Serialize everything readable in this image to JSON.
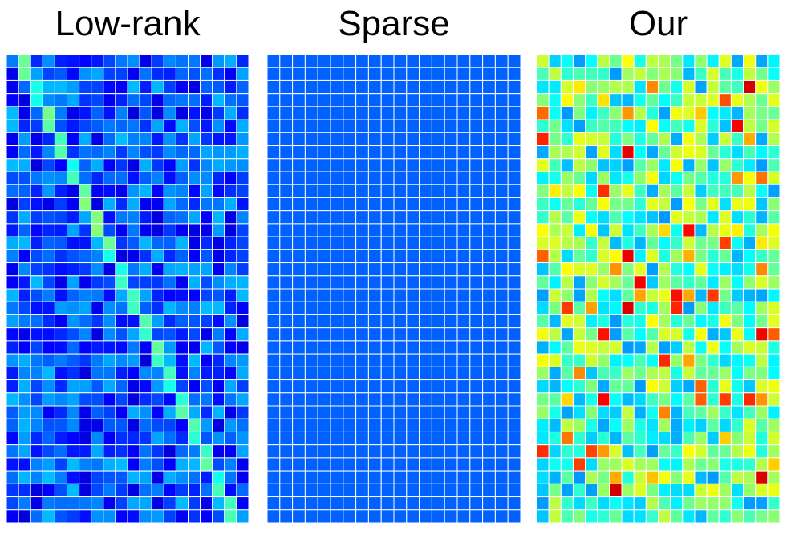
{
  "chart_data": [
    {
      "type": "heatmap",
      "title": "Low-rank",
      "rows": 36,
      "cols": 20,
      "colormap": "jet",
      "value_range": [
        0,
        1
      ],
      "grid": true,
      "grid_color": "#ffffff",
      "background_level": 0.2,
      "diagonal": {
        "present": true,
        "level": 0.45,
        "path": "descends from top-left toward lower-right"
      }
    },
    {
      "type": "heatmap",
      "title": "Sparse",
      "rows": 36,
      "cols": 20,
      "colormap": "jet",
      "value_range": [
        0,
        1
      ],
      "grid": true,
      "grid_color": "#ffffff",
      "uniform_level": 0.22
    },
    {
      "type": "heatmap",
      "title": "Our",
      "rows": 36,
      "cols": 20,
      "colormap": "jet",
      "value_range": [
        0,
        1
      ],
      "grid": true,
      "grid_color": "#ffffff",
      "background_level": 0.45,
      "spread": "mixed mid-to-high values"
    }
  ],
  "colors": {
    "low": "#0a2fc4",
    "mid_blue": "#1466e0",
    "cyan": "#1fd0e6",
    "green": "#4fe36a",
    "yellow": "#f2ea1a",
    "orange": "#f57a1e",
    "grid": "#ffffff"
  }
}
